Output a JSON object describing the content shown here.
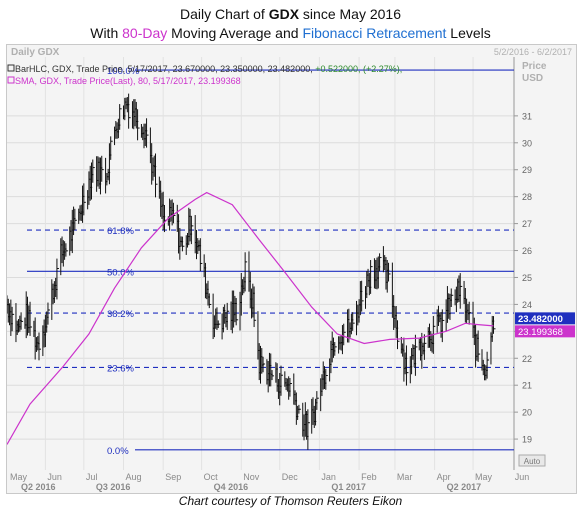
{
  "header": {
    "title_pre": "Daily Chart of ",
    "title_ticker": "GDX",
    "title_post": " since May 2016",
    "subtitle_pre": "With ",
    "subtitle_ma": "80-Day",
    "subtitle_mid": " Moving Average and ",
    "subtitle_fib": "Fibonacci Retracement",
    "subtitle_post": " Levels"
  },
  "panel": {
    "name": "Daily GDX",
    "date_range": "5/2/2016 - 6/2/2017",
    "axis_title": "Price",
    "axis_currency": "USD",
    "auto_label": "Auto"
  },
  "legend": {
    "bar": "BarHLC, GDX, Trade Price, 5/17/2017, 23.670000, 23.350000, 23.482000, ",
    "bar_change": "+0.522000, (+2.27%),",
    "sma": "SMA, GDX, Trade Price(Last), 80, 5/17/2017, 23.199368"
  },
  "caption": "Chart courtesy of Thomson Reuters Eikon",
  "colors": {
    "bars": "#111111",
    "sma": "#cc33cc",
    "fib_line": "#1f2fbf",
    "last_price_box": "#1f2fbf",
    "sma_box": "#cc33cc",
    "change_text": "#2e8b2e",
    "background": "#f4f4f4"
  },
  "chart_data": {
    "type": "bar",
    "ylim": [
      18,
      33
    ],
    "y_ticks": [
      19,
      20,
      21,
      22,
      23,
      24,
      25,
      26,
      27,
      28,
      29,
      30,
      31
    ],
    "x_month_labels": [
      "May",
      "Jun",
      "Jul",
      "Aug",
      "Sep",
      "Oct",
      "Nov",
      "Dec",
      "Jan",
      "Feb",
      "Mar",
      "Apr",
      "May",
      "Jun"
    ],
    "x_quarter_labels": [
      "Q2 2016",
      "Q3 2016",
      "Q4 2016",
      "Q1 2017",
      "Q2 2017"
    ],
    "grid": "horizontal",
    "price_path": [
      [
        "2016-05-02",
        24.0
      ],
      [
        "2016-05-10",
        23.1
      ],
      [
        "2016-05-17",
        23.6
      ],
      [
        "2016-05-26",
        22.5
      ],
      [
        "2016-06-03",
        23.7
      ],
      [
        "2016-06-13",
        25.8
      ],
      [
        "2016-06-24",
        26.9
      ],
      [
        "2016-07-01",
        28.0
      ],
      [
        "2016-07-08",
        29.0
      ],
      [
        "2016-07-18",
        28.8
      ],
      [
        "2016-07-26",
        30.7
      ],
      [
        "2016-08-03",
        31.5
      ],
      [
        "2016-08-11",
        31.0
      ],
      [
        "2016-08-18",
        30.5
      ],
      [
        "2016-08-26",
        28.5
      ],
      [
        "2016-09-02",
        27.0
      ],
      [
        "2016-09-09",
        27.3
      ],
      [
        "2016-09-16",
        26.0
      ],
      [
        "2016-09-23",
        27.2
      ],
      [
        "2016-10-03",
        25.0
      ],
      [
        "2016-10-11",
        23.3
      ],
      [
        "2016-10-20",
        23.5
      ],
      [
        "2016-10-28",
        23.8
      ],
      [
        "2016-11-04",
        25.2
      ],
      [
        "2016-11-10",
        24.0
      ],
      [
        "2016-11-15",
        21.8
      ],
      [
        "2016-11-23",
        21.5
      ],
      [
        "2016-12-01",
        21.1
      ],
      [
        "2016-12-09",
        21.0
      ],
      [
        "2016-12-16",
        20.0
      ],
      [
        "2016-12-23",
        19.3
      ],
      [
        "2016-12-30",
        20.4
      ],
      [
        "2017-01-06",
        21.7
      ],
      [
        "2017-01-13",
        22.8
      ],
      [
        "2017-01-20",
        23.0
      ],
      [
        "2017-01-27",
        23.2
      ],
      [
        "2017-02-03",
        24.4
      ],
      [
        "2017-02-10",
        25.2
      ],
      [
        "2017-02-17",
        25.5
      ],
      [
        "2017-02-24",
        24.8
      ],
      [
        "2017-03-03",
        23.0
      ],
      [
        "2017-03-10",
        21.7
      ],
      [
        "2017-03-17",
        22.2
      ],
      [
        "2017-03-24",
        22.8
      ],
      [
        "2017-03-31",
        23.0
      ],
      [
        "2017-04-07",
        23.4
      ],
      [
        "2017-04-13",
        24.0
      ],
      [
        "2017-04-20",
        24.5
      ],
      [
        "2017-04-27",
        23.6
      ],
      [
        "2017-05-04",
        22.3
      ],
      [
        "2017-05-10",
        21.6
      ],
      [
        "2017-05-17",
        23.48
      ]
    ],
    "sma_80": [
      [
        "2016-05-02",
        18.8
      ],
      [
        "2016-05-20",
        20.3
      ],
      [
        "2016-06-15",
        21.7
      ],
      [
        "2016-07-05",
        22.9
      ],
      [
        "2016-07-25",
        24.6
      ],
      [
        "2016-08-15",
        26.1
      ],
      [
        "2016-09-05",
        27.2
      ],
      [
        "2016-09-26",
        27.9
      ],
      [
        "2016-10-05",
        28.15
      ],
      [
        "2016-10-25",
        27.7
      ],
      [
        "2016-11-15",
        26.4
      ],
      [
        "2016-12-05",
        25.2
      ],
      [
        "2016-12-26",
        23.9
      ],
      [
        "2017-01-15",
        22.9
      ],
      [
        "2017-02-05",
        22.55
      ],
      [
        "2017-02-25",
        22.7
      ],
      [
        "2017-03-20",
        22.75
      ],
      [
        "2017-04-10",
        23.0
      ],
      [
        "2017-04-25",
        23.3
      ],
      [
        "2017-05-05",
        23.25
      ],
      [
        "2017-05-17",
        23.2
      ]
    ],
    "sma_period": 80,
    "fibonacci_levels": [
      {
        "label": "100.0%",
        "value": 32.7
      },
      {
        "label": "61.8%",
        "value": 26.76
      },
      {
        "label": "50.0%",
        "value": 25.23
      },
      {
        "label": "38.2%",
        "value": 23.68
      },
      {
        "label": "23.6%",
        "value": 21.66
      },
      {
        "label": "0.0%",
        "value": 18.6
      }
    ],
    "last_price": "23.482000",
    "last_sma": "23.199368"
  }
}
